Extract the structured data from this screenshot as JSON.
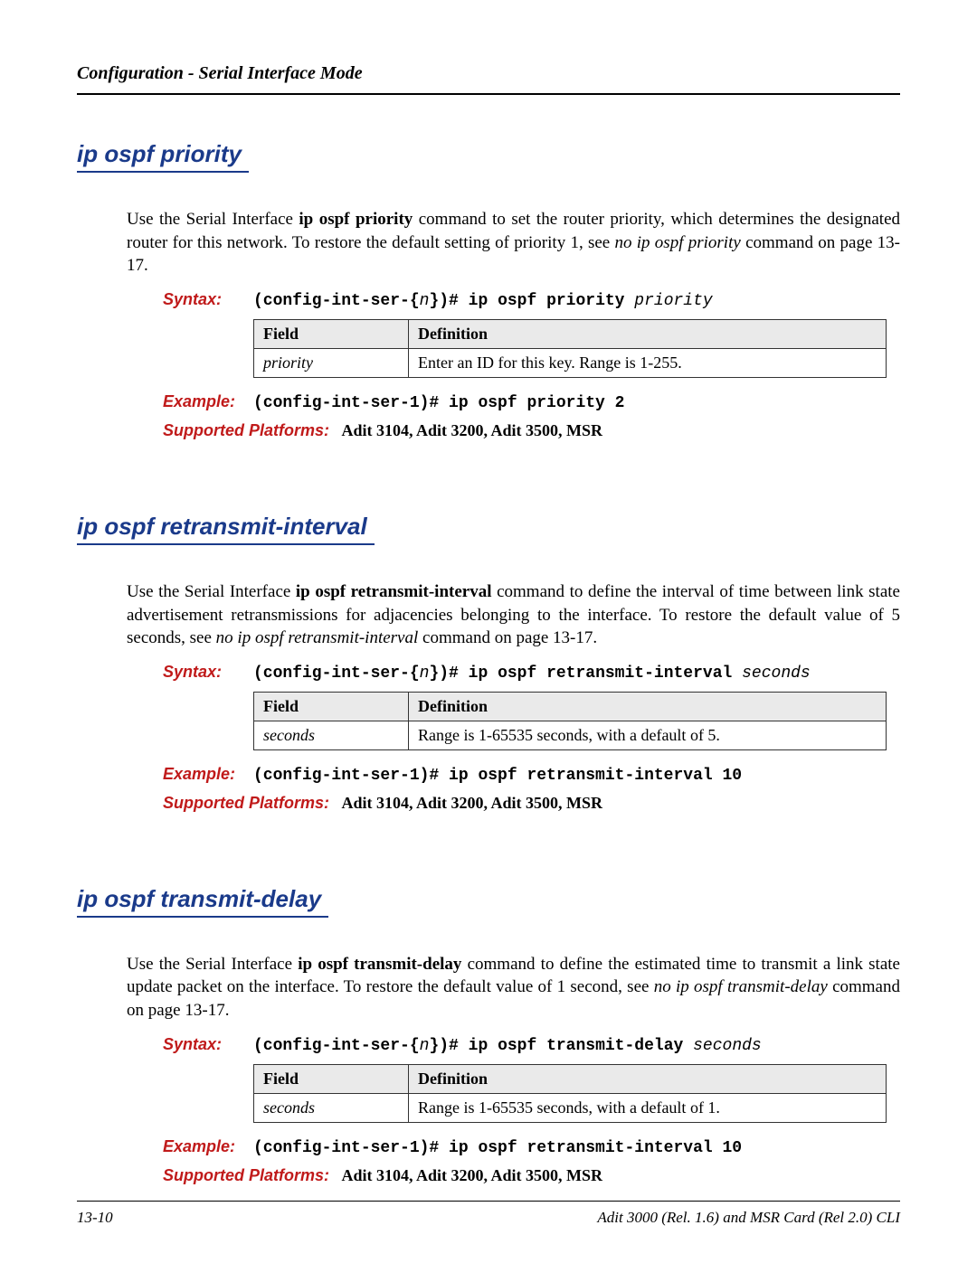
{
  "page_header": "Configuration - Serial Interface Mode",
  "colors": {
    "heading_blue": "#1a3a8a",
    "label_red": "#c01a1a",
    "table_header_bg": "#eaeaea",
    "border": "#000000"
  },
  "labels": {
    "syntax": "Syntax:",
    "example": "Example:",
    "platforms": "Supported Platforms:",
    "table_field": "Field",
    "table_def": "Definition"
  },
  "sections": [
    {
      "id": "priority",
      "title": "ip ospf priority",
      "para_pre": "Use the Serial Interface ",
      "para_cmd": "ip ospf priority",
      "para_mid": " command to set the router priority, which determines the designated router for this network. To restore the default setting of priority 1, see ",
      "para_ital": "no ip ospf priority",
      "para_post": " command on page 13-17.",
      "syntax_code": "(config-int-ser-{",
      "syntax_var_n": "n",
      "syntax_code2": "})# ip ospf priority ",
      "syntax_var_end": "priority",
      "table_field": "priority",
      "table_def": "Enter an ID for this key. Range is 1-255.",
      "example": "(config-int-ser-1)# ip ospf priority 2",
      "platforms": "Adit 3104, Adit 3200, Adit 3500, MSR"
    },
    {
      "id": "retransmit",
      "title": "ip ospf retransmit-interval",
      "para_pre": "Use the Serial Interface ",
      "para_cmd": "ip ospf retransmit-interval",
      "para_mid": " command to define the interval of time between link state advertisement retransmissions for adjacencies belonging to the interface. To restore the default value of 5 seconds, see ",
      "para_ital": "no ip ospf retransmit-interval",
      "para_post": " command on page 13-17.",
      "syntax_code": "(config-int-ser-{",
      "syntax_var_n": "n",
      "syntax_code2": "})# ip ospf retransmit-interval ",
      "syntax_var_end": "seconds",
      "table_field": "seconds",
      "table_def": "Range is 1-65535 seconds, with a default of 5.",
      "example": "(config-int-ser-1)# ip ospf retransmit-interval 10",
      "platforms": "Adit 3104, Adit 3200, Adit 3500, MSR"
    },
    {
      "id": "transmitdelay",
      "title": "ip ospf transmit-delay",
      "para_pre": "Use the Serial Interface ",
      "para_cmd": "ip ospf transmit-delay",
      "para_mid": " command to define the estimated time to transmit a link state update packet on the interface. To restore the default value of 1 second, see ",
      "para_ital": "no ip ospf transmit-delay",
      "para_post": " command on page 13-17.",
      "syntax_code": "(config-int-ser-{",
      "syntax_var_n": "n",
      "syntax_code2": "})# ip ospf transmit-delay ",
      "syntax_var_end": "seconds",
      "table_field": "seconds",
      "table_def": "Range is 1-65535 seconds, with a default of 1.",
      "example": "(config-int-ser-1)# ip ospf retransmit-interval 10",
      "platforms": "Adit 3104, Adit 3200, Adit 3500, MSR"
    }
  ],
  "footer": {
    "left": "13-10",
    "right": "Adit 3000 (Rel. 1.6) and MSR Card (Rel 2.0) CLI"
  }
}
